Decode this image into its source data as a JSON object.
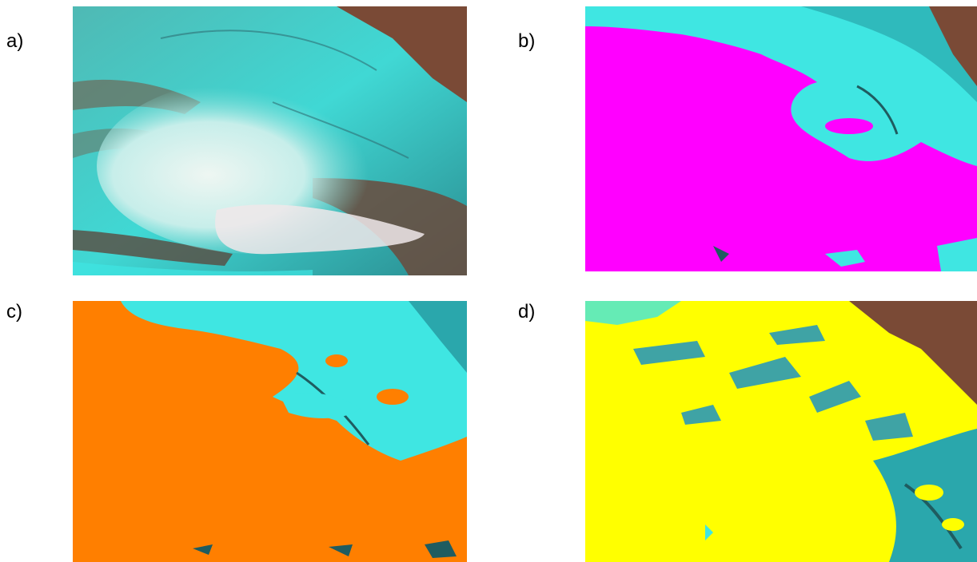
{
  "labels": {
    "a": "a)",
    "b": "b)",
    "c": "c)",
    "d": "d)"
  },
  "colors": {
    "snow": "#3fe6e2",
    "snow_dark": "#1f8c92",
    "bare_ground": "#7a4a36",
    "cloud": "#e9f1ee",
    "mask_b": "#ff00ff",
    "mask_c": "#ff7f00",
    "mask_d": "#ffff00"
  }
}
